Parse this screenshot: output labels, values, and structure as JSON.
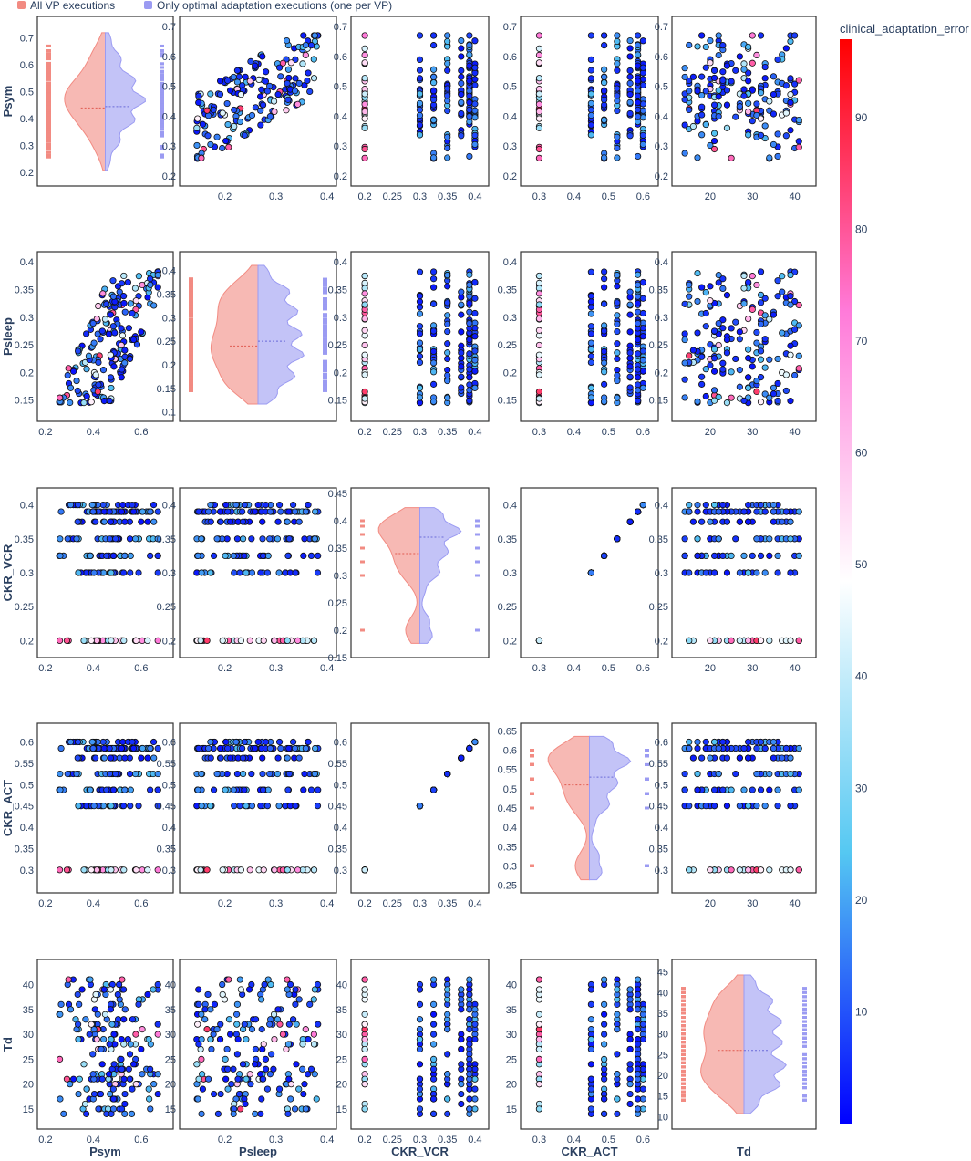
{
  "chart_data": {
    "type": "scatter",
    "kind": "scatter-matrix with split violin diagonal",
    "variables": [
      "Psym",
      "Psleep",
      "CKR_VCR",
      "CKR_ACT",
      "Td"
    ],
    "legend": {
      "placement": "top-left",
      "items": [
        {
          "name": "All VP executions",
          "color": "#f28b82"
        },
        {
          "name": "Only optimal adaptation executions (one per VP)",
          "color": "#9b9bf2"
        }
      ]
    },
    "colorbar": {
      "title": "clinical_adaptation_error",
      "range": [
        0,
        97
      ],
      "ticks": [
        10,
        20,
        30,
        40,
        50,
        60,
        70,
        80,
        90
      ],
      "colorscale": [
        "#0000ff",
        "#55c8f2",
        "#ffffff",
        "#ff7ad9",
        "#ff0000"
      ]
    },
    "colors": {
      "all_vp": "#f28b82",
      "optimal": "#9b9bf2",
      "marker_edge": "#111111",
      "axis_text": "#2a3f5f"
    },
    "axes": {
      "Psym": {
        "range": [
          0.2,
          0.7
        ],
        "scatter_ticks": [
          "0.2",
          "0.4",
          "0.6"
        ],
        "violin_ticks": [
          "0.2",
          "0.3",
          "0.4",
          "0.5",
          "0.6",
          "0.7"
        ]
      },
      "Psleep": {
        "range": [
          0.13,
          0.4
        ],
        "scatter_ticks": [
          "0.2",
          "0.3",
          "0.4"
        ],
        "violin_ticks": [
          "0.1",
          "0.15",
          "0.2",
          "0.25",
          "0.3",
          "0.35",
          "0.4"
        ]
      },
      "CKR_VCR": {
        "range": [
          0.19,
          0.41
        ],
        "scatter_ticks": [
          "0.2",
          "0.25",
          "0.3",
          "0.35",
          "0.4"
        ],
        "violin_ticks": [
          "0.15",
          "0.2",
          "0.25",
          "0.3",
          "0.35",
          "0.4",
          "0.45"
        ]
      },
      "CKR_ACT": {
        "range": [
          0.27,
          0.62
        ],
        "scatter_ticks": [
          "0.3",
          "0.4",
          "0.5",
          "0.6"
        ],
        "violin_ticks": [
          "0.25",
          "0.3",
          "0.35",
          "0.4",
          "0.45",
          "0.5",
          "0.55",
          "0.6",
          "0.65"
        ]
      },
      "Td": {
        "range": [
          13,
          43
        ],
        "scatter_ticks": [
          "20",
          "30",
          "40"
        ],
        "violin_ticks": [
          "10",
          "15",
          "20",
          "25",
          "30",
          "35",
          "40",
          "45"
        ]
      }
    },
    "row_axis_ticks": {
      "Psym": [
        "0.2",
        "0.3",
        "0.4",
        "0.5",
        "0.6",
        "0.7"
      ],
      "Psleep": [
        "0.15",
        "0.2",
        "0.25",
        "0.3",
        "0.35",
        "0.4"
      ],
      "CKR_VCR": [
        "0.2",
        "0.25",
        "0.3",
        "0.35",
        "0.4"
      ],
      "CKR_ACT": [
        "0.3",
        "0.35",
        "0.4",
        "0.45",
        "0.5",
        "0.55",
        "0.6"
      ],
      "Td": [
        "15",
        "20",
        "25",
        "30",
        "35",
        "40"
      ]
    },
    "discrete_levels": {
      "CKR_VCR": [
        0.2,
        0.3,
        0.325,
        0.35,
        0.375,
        0.39,
        0.4
      ],
      "CKR_ACT": [
        0.3,
        0.45,
        0.4875,
        0.525,
        0.5625,
        0.585,
        0.6
      ]
    },
    "violins": {
      "Psym": {
        "ylim": [
          0.15,
          0.78
        ],
        "median_all": 0.44,
        "median_opt": 0.445
      },
      "Psleep": {
        "ylim": [
          0.08,
          0.44
        ],
        "median_all": 0.24,
        "median_opt": 0.25
      },
      "CKR_VCR": {
        "ylim": [
          0.15,
          0.46
        ],
        "median_all": 0.34,
        "median_opt": 0.37
      },
      "CKR_ACT": {
        "ylim": [
          0.23,
          0.67
        ],
        "median_all": 0.51,
        "median_opt": 0.53
      },
      "Td": {
        "ylim": [
          7,
          48
        ],
        "median_all": 26,
        "median_opt": 26
      }
    }
  }
}
